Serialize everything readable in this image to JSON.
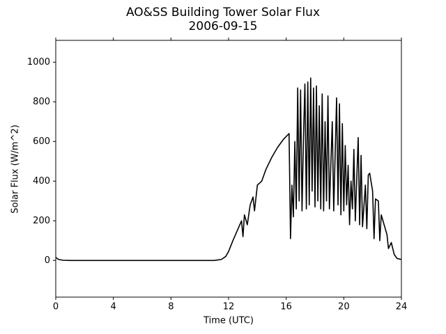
{
  "chart_data": {
    "type": "line",
    "title": "AO&SS Building Tower Solar Flux",
    "subtitle": "2006-09-15",
    "x_label": "Time (UTC)",
    "y_label": "Solar Flux (W/m^2)",
    "xlim": [
      0,
      24
    ],
    "xticks": [
      0,
      4,
      8,
      12,
      16,
      20,
      24
    ],
    "ylim": [
      -185,
      1110
    ],
    "yticks": [
      0,
      200,
      400,
      600,
      800,
      1000
    ],
    "color": "#000000",
    "x": [
      0,
      0.2,
      0.5,
      1,
      11,
      11.5,
      11.8,
      12,
      12.3,
      12.6,
      12.9,
      13.0,
      13.1,
      13.3,
      13.5,
      13.7,
      13.8,
      14.0,
      14.3,
      14.6,
      15.0,
      15.4,
      15.8,
      16.2,
      16.3,
      16.4,
      16.5,
      16.6,
      16.7,
      16.8,
      16.9,
      17.0,
      17.1,
      17.2,
      17.3,
      17.4,
      17.5,
      17.6,
      17.7,
      17.8,
      17.9,
      18.0,
      18.1,
      18.2,
      18.3,
      18.4,
      18.5,
      18.6,
      18.7,
      18.8,
      18.9,
      19.0,
      19.2,
      19.3,
      19.5,
      19.6,
      19.7,
      19.8,
      19.9,
      20.0,
      20.1,
      20.2,
      20.3,
      20.4,
      20.5,
      20.6,
      20.7,
      20.8,
      21.0,
      21.1,
      21.2,
      21.3,
      21.5,
      21.6,
      21.7,
      21.8,
      22.0,
      22.1,
      22.2,
      22.4,
      22.5,
      22.6,
      22.8,
      23.0,
      23.1,
      23.3,
      23.5,
      23.7,
      24
    ],
    "values": [
      15,
      5,
      1,
      0,
      0,
      5,
      20,
      45,
      100,
      150,
      200,
      120,
      230,
      180,
      280,
      320,
      250,
      380,
      400,
      460,
      520,
      570,
      610,
      640,
      110,
      380,
      220,
      600,
      260,
      870,
      300,
      860,
      250,
      620,
      890,
      260,
      900,
      280,
      920,
      350,
      870,
      270,
      880,
      300,
      780,
      260,
      840,
      250,
      700,
      300,
      830,
      260,
      700,
      250,
      820,
      280,
      790,
      230,
      690,
      250,
      580,
      280,
      480,
      180,
      400,
      260,
      560,
      200,
      620,
      180,
      530,
      170,
      380,
      160,
      430,
      440,
      350,
      110,
      310,
      300,
      100,
      230,
      180,
      130,
      60,
      90,
      30,
      10,
      5
    ]
  }
}
